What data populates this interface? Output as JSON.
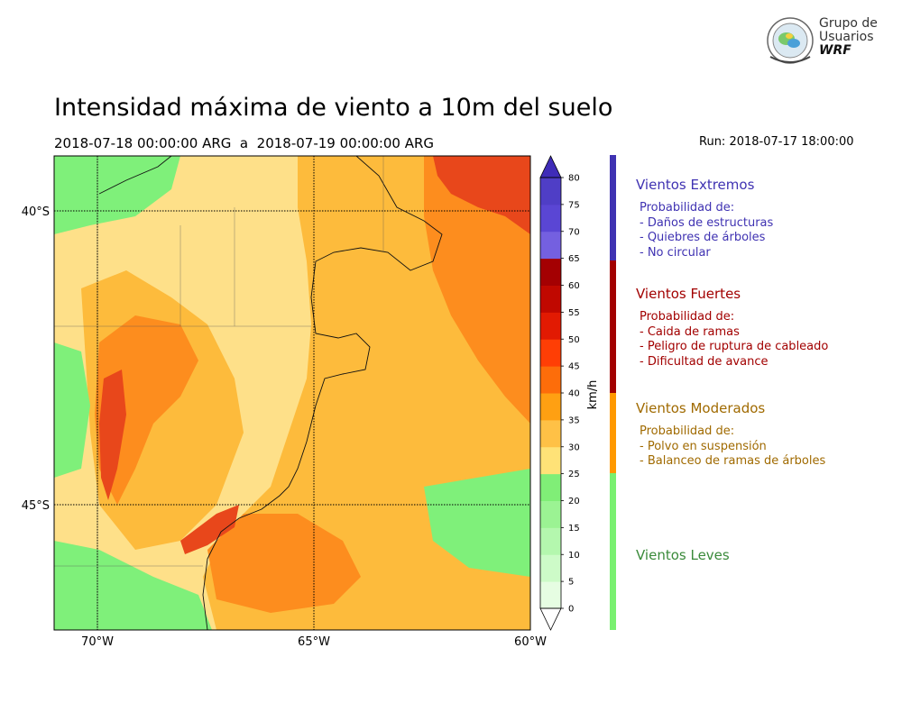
{
  "title": "Intensidad máxima de viento a 10m del suelo",
  "subtitle": "2018-07-18 00:00:00 ARG  a  2018-07-19 00:00:00 ARG",
  "run": "Run: 2018-07-17 18:00:00",
  "logo": {
    "line1": "Grupo de",
    "line2": "Usuarios",
    "line3": "WRF"
  },
  "map": {
    "lat_labels": [
      "40°S",
      "45°S"
    ],
    "lon_labels": [
      "70°W",
      "65°W",
      "60°W"
    ],
    "colors": {
      "calm": "#fee089",
      "moderate": "#fdbb3c",
      "strong": "#fd8d1e",
      "extreme": "#e8471b",
      "light": "#7ff07a"
    }
  },
  "colorbar": {
    "unit": "km/h",
    "levels": [
      "0",
      "5",
      "10",
      "15",
      "20",
      "25",
      "30",
      "35",
      "40",
      "45",
      "50",
      "55",
      "60",
      "65",
      "70",
      "75",
      "80"
    ],
    "colors": [
      "#e6fde2",
      "#cdfbc8",
      "#b4f7ae",
      "#9bf393",
      "#80ee77",
      "#ffe277",
      "#ffc146",
      "#ffa012",
      "#fd6d0a",
      "#ff3e05",
      "#e21a02",
      "#c00800",
      "#a40002",
      "#7460e0",
      "#5a46d4",
      "#4f3ec6",
      "#3e2bb5"
    ],
    "under_color": "#ffffff",
    "over_color": "#3f2cb8"
  },
  "legend": {
    "extreme": {
      "title": "Vientos Extremos",
      "lines": [
        "Probabilidad de:",
        "- Daños de estructuras",
        "- Quiebres de árboles",
        "- No circular"
      ],
      "color": "#3f32b2"
    },
    "strong": {
      "title": "Vientos Fuertes",
      "lines": [
        "Probabilidad de:",
        "- Caida de ramas",
        "- Peligro de ruptura de cableado",
        "- Dificultad de avance"
      ],
      "color": "#a20000"
    },
    "moderate": {
      "title": "Vientos Moderados",
      "lines": [
        "Probabilidad de:",
        "- Polvo en suspensión",
        "- Balanceo de ramas de árboles"
      ],
      "color": "#a06a00",
      "band_color": "#ff9900"
    },
    "light": {
      "title": "Vientos Leves",
      "lines": [],
      "color": "#3a8a3a",
      "band_color": "#79f070"
    }
  }
}
